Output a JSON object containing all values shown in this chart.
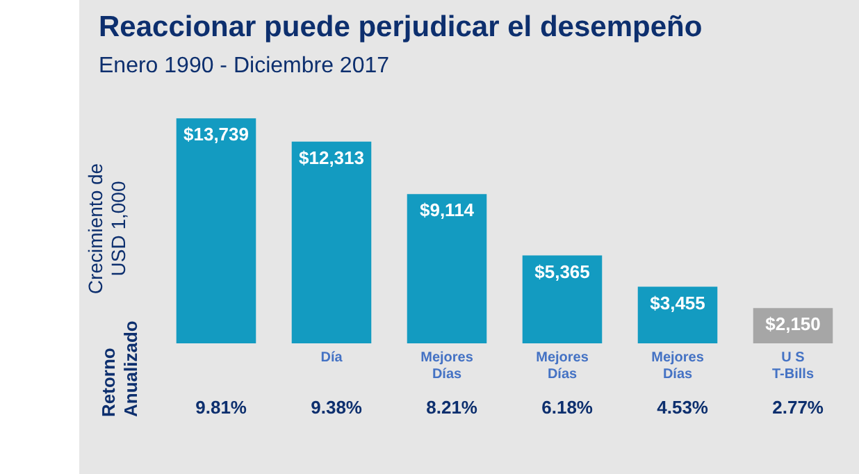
{
  "chart_data": {
    "type": "bar",
    "title": "Reaccionar puede perjudicar el desempeño",
    "subtitle": "Enero 1990 - Diciembre 2017",
    "ylabel": "Crecimiento de USD 1,000",
    "categories": [
      null,
      "Día",
      "Mejores Días",
      "Mejores Días",
      "Mejores Días",
      "U S T-Bills"
    ],
    "values": [
      13739,
      12313,
      9114,
      5365,
      3455,
      2150
    ],
    "colors": [
      "#139bc1",
      "#139bc1",
      "#139bc1",
      "#139bc1",
      "#139bc1",
      "#a6a6a6"
    ],
    "value_labels": [
      "$13,739",
      "$12,313",
      "$9,114",
      "$5,365",
      "$3,455",
      "$2,150"
    ],
    "annotations": [
      "Retorno Anualizado",
      "9.81%",
      "9.38%",
      "8.21%",
      "6.18%",
      "4.53%",
      "2.77%"
    ],
    "relative": false,
    "tick_labels": "x",
    "grid": false,
    "legend": false
  }
}
